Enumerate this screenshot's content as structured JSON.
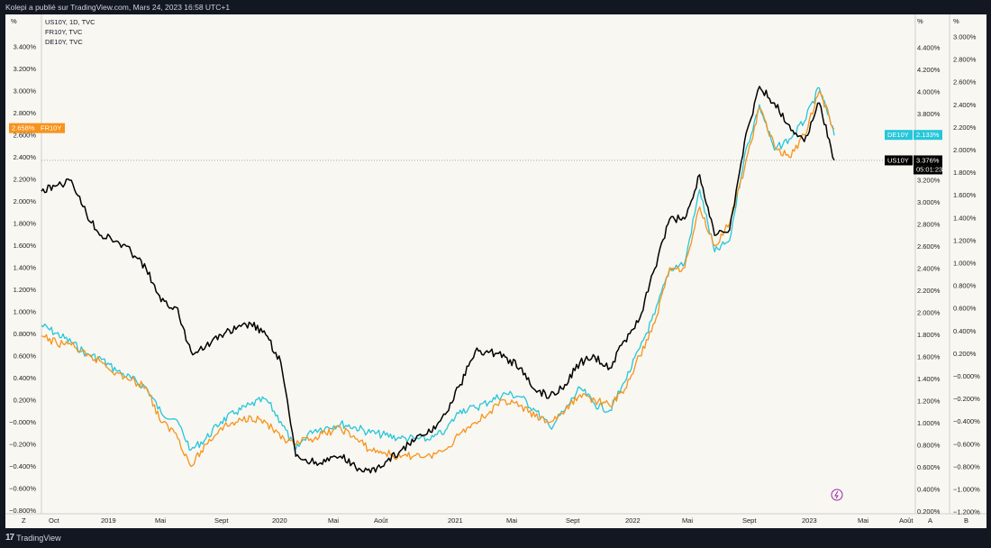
{
  "header": {
    "publisher_text": "Kolepi a publié sur TradingView.com, Mars 24, 2023 16:58 UTC+1"
  },
  "footer": {
    "brand": "TradingView"
  },
  "corners": {
    "top_left_unit": "%",
    "top_right_unit_1": "%",
    "top_right_unit_2": "%",
    "bottom_left": "Z",
    "bottom_a": "A",
    "bottom_b": "B"
  },
  "colors": {
    "US10Y": "#000000",
    "FR10Y": "#f7931a",
    "DE10Y": "#26c6da",
    "background": "#f8f7f2",
    "frame": "#131722",
    "guide": "#777777"
  },
  "chart_data": {
    "type": "line",
    "legend": [
      "US10Y, 1D, TVC",
      "FR10Y, TVC",
      "DE10Y, TVC"
    ],
    "x_ticks": [
      "Oct",
      "2019",
      "Mai",
      "Sept",
      "2020",
      "Mai",
      "Août",
      "2021",
      "Mai",
      "Sept",
      "2022",
      "Mai",
      "Sept",
      "2023",
      "Mai",
      "Août"
    ],
    "axes": {
      "left": {
        "unit": "%",
        "ticks": [
          "3.400%",
          "3.200%",
          "3.000%",
          "2.800%",
          "2.600%",
          "2.400%",
          "2.200%",
          "2.000%",
          "1.800%",
          "1.600%",
          "1.400%",
          "1.200%",
          "1.000%",
          "0.800%",
          "0.600%",
          "0.400%",
          "0.200%",
          "−0.000%",
          "−0.200%",
          "−0.400%",
          "−0.600%",
          "−0.800%"
        ]
      },
      "right_a": {
        "unit": "%",
        "ticks": [
          "4.400%",
          "4.200%",
          "4.000%",
          "3.800%",
          "3.600%",
          "3.400%",
          "3.200%",
          "3.000%",
          "2.800%",
          "2.600%",
          "2.400%",
          "2.200%",
          "2.000%",
          "1.800%",
          "1.600%",
          "1.400%",
          "1.200%",
          "1.000%",
          "0.800%",
          "0.600%",
          "0.400%",
          "0.200%"
        ]
      },
      "right_b": {
        "unit": "%",
        "ticks": [
          "3.000%",
          "2.800%",
          "2.600%",
          "2.400%",
          "2.200%",
          "2.000%",
          "1.800%",
          "1.600%",
          "1.400%",
          "1.200%",
          "1.000%",
          "0.800%",
          "0.600%",
          "0.400%",
          "0.200%",
          "−0.000%",
          "−0.200%",
          "−0.400%",
          "−0.600%",
          "−0.800%",
          "−1.000%",
          "−1.200%"
        ]
      }
    },
    "series": [
      {
        "name": "US10Y",
        "axis": "right_a",
        "last_label": "3.376%",
        "countdown": "05:01:23",
        "dates": [
          "2018-10",
          "2018-11",
          "2018-12",
          "2019-01",
          "2019-02",
          "2019-03",
          "2019-04",
          "2019-05",
          "2019-06",
          "2019-07",
          "2019-08",
          "2019-09",
          "2019-10",
          "2019-11",
          "2019-12",
          "2020-01",
          "2020-02",
          "2020-03",
          "2020-04",
          "2020-05",
          "2020-06",
          "2020-07",
          "2020-08",
          "2020-09",
          "2020-10",
          "2020-11",
          "2020-12",
          "2021-01",
          "2021-02",
          "2021-03",
          "2021-04",
          "2021-05",
          "2021-06",
          "2021-07",
          "2021-08",
          "2021-09",
          "2021-10",
          "2021-11",
          "2021-12",
          "2022-01",
          "2022-02",
          "2022-03",
          "2022-04",
          "2022-05",
          "2022-06",
          "2022-07",
          "2022-08",
          "2022-09",
          "2022-10",
          "2022-11",
          "2022-12",
          "2023-01",
          "2023-02",
          "2023-03"
        ],
        "values": [
          3.1,
          3.15,
          3.2,
          2.9,
          2.7,
          2.65,
          2.55,
          2.4,
          2.1,
          2.05,
          1.65,
          1.7,
          1.8,
          1.85,
          1.9,
          1.8,
          1.55,
          0.7,
          0.65,
          0.65,
          0.7,
          0.6,
          0.55,
          0.65,
          0.75,
          0.85,
          0.92,
          1.08,
          1.35,
          1.65,
          1.65,
          1.6,
          1.5,
          1.3,
          1.25,
          1.35,
          1.55,
          1.6,
          1.5,
          1.75,
          1.95,
          2.4,
          2.85,
          2.85,
          3.25,
          2.7,
          2.75,
          3.55,
          4.05,
          3.9,
          3.7,
          3.55,
          3.9,
          3.38
        ]
      },
      {
        "name": "FR10Y",
        "axis": "left",
        "last_label": "2.658%",
        "dates": [
          "2018-10",
          "2018-11",
          "2018-12",
          "2019-01",
          "2019-02",
          "2019-03",
          "2019-04",
          "2019-05",
          "2019-06",
          "2019-07",
          "2019-08",
          "2019-09",
          "2019-10",
          "2019-11",
          "2019-12",
          "2020-01",
          "2020-02",
          "2020-03",
          "2020-04",
          "2020-05",
          "2020-06",
          "2020-07",
          "2020-08",
          "2020-09",
          "2020-10",
          "2020-11",
          "2020-12",
          "2021-01",
          "2021-02",
          "2021-03",
          "2021-04",
          "2021-05",
          "2021-06",
          "2021-07",
          "2021-08",
          "2021-09",
          "2021-10",
          "2021-11",
          "2021-12",
          "2022-01",
          "2022-02",
          "2022-03",
          "2022-04",
          "2022-05",
          "2022-06",
          "2022-07",
          "2022-08",
          "2022-09",
          "2022-10",
          "2022-11",
          "2022-12",
          "2023-01",
          "2023-02",
          "2023-03"
        ],
        "values": [
          0.78,
          0.72,
          0.7,
          0.6,
          0.55,
          0.45,
          0.38,
          0.32,
          0.0,
          -0.1,
          -0.4,
          -0.2,
          -0.05,
          0.0,
          0.05,
          0.0,
          -0.15,
          -0.2,
          -0.15,
          -0.1,
          -0.05,
          -0.15,
          -0.25,
          -0.28,
          -0.32,
          -0.3,
          -0.3,
          -0.25,
          -0.1,
          0.0,
          0.1,
          0.2,
          0.15,
          0.05,
          0.0,
          0.1,
          0.25,
          0.2,
          0.15,
          0.3,
          0.6,
          0.9,
          1.4,
          1.4,
          1.95,
          1.6,
          1.8,
          2.3,
          2.85,
          2.5,
          2.4,
          2.6,
          3.0,
          2.66
        ]
      },
      {
        "name": "DE10Y",
        "axis": "right_b",
        "last_label": "2.133%",
        "dates": [
          "2018-10",
          "2018-11",
          "2018-12",
          "2019-01",
          "2019-02",
          "2019-03",
          "2019-04",
          "2019-05",
          "2019-06",
          "2019-07",
          "2019-08",
          "2019-09",
          "2019-10",
          "2019-11",
          "2019-12",
          "2020-01",
          "2020-02",
          "2020-03",
          "2020-04",
          "2020-05",
          "2020-06",
          "2020-07",
          "2020-08",
          "2020-09",
          "2020-10",
          "2020-11",
          "2020-12",
          "2021-01",
          "2021-02",
          "2021-03",
          "2021-04",
          "2021-05",
          "2021-06",
          "2021-07",
          "2021-08",
          "2021-09",
          "2021-10",
          "2021-11",
          "2021-12",
          "2022-01",
          "2022-02",
          "2022-03",
          "2022-04",
          "2022-05",
          "2022-06",
          "2022-07",
          "2022-08",
          "2022-09",
          "2022-10",
          "2022-11",
          "2022-12",
          "2023-01",
          "2023-02",
          "2023-03"
        ],
        "values": [
          0.45,
          0.38,
          0.3,
          0.2,
          0.15,
          0.05,
          -0.02,
          -0.1,
          -0.32,
          -0.38,
          -0.65,
          -0.55,
          -0.4,
          -0.32,
          -0.25,
          -0.2,
          -0.4,
          -0.65,
          -0.48,
          -0.45,
          -0.42,
          -0.45,
          -0.5,
          -0.52,
          -0.55,
          -0.55,
          -0.56,
          -0.48,
          -0.3,
          -0.28,
          -0.22,
          -0.15,
          -0.18,
          -0.3,
          -0.45,
          -0.3,
          -0.1,
          -0.25,
          -0.3,
          -0.05,
          0.25,
          0.55,
          0.95,
          1.0,
          1.65,
          1.1,
          1.2,
          1.95,
          2.4,
          2.0,
          2.1,
          2.25,
          2.55,
          2.13
        ]
      }
    ]
  }
}
